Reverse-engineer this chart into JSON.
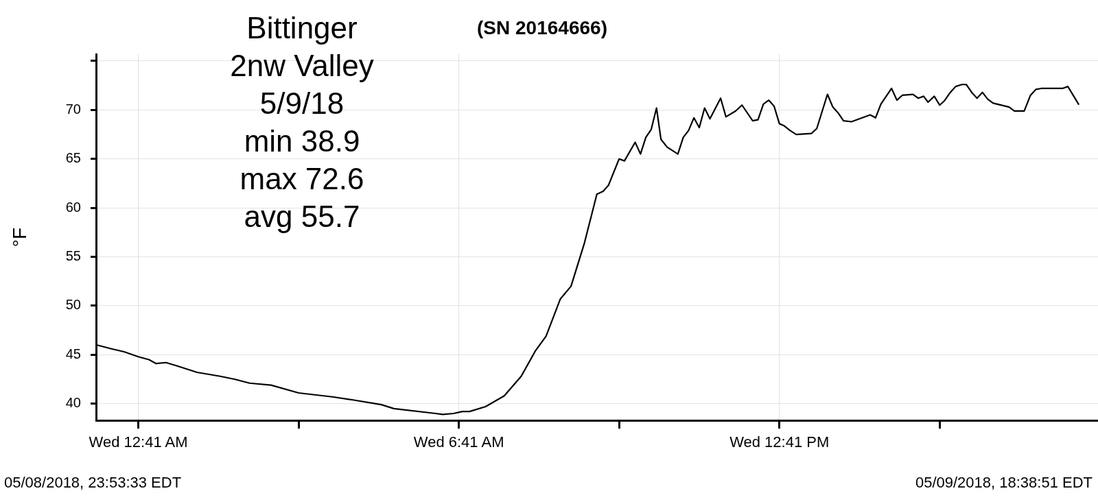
{
  "chart_data": {
    "type": "line",
    "title": "Bittinger\n2nw Valley\n5/9/18\nmin 38.9\nmax 72.6\navg 55.7",
    "subtitle": "(SN 20164666)",
    "ylabel": "°F",
    "annotations": [
      "05/08/2018, 23:53:33 EDT",
      "05/09/2018, 18:38:51 EDT"
    ],
    "x": [
      "2018-05-08T23:54",
      "2018-05-09T00:11",
      "2018-05-09T00:25",
      "2018-05-09T00:41",
      "2018-05-09T00:53",
      "2018-05-09T01:01",
      "2018-05-09T01:12",
      "2018-05-09T01:23",
      "2018-05-09T01:47",
      "2018-05-09T02:13",
      "2018-05-09T02:29",
      "2018-05-09T02:46",
      "2018-05-09T03:10",
      "2018-05-09T03:41",
      "2018-05-09T04:19",
      "2018-05-09T04:41",
      "2018-05-09T05:14",
      "2018-05-09T05:28",
      "2018-05-09T06:15",
      "2018-05-09T06:23",
      "2018-05-09T06:35",
      "2018-05-09T06:45",
      "2018-05-09T06:53",
      "2018-05-09T07:11",
      "2018-05-09T07:32",
      "2018-05-09T07:51",
      "2018-05-09T08:07",
      "2018-05-09T08:19",
      "2018-05-09T08:35",
      "2018-05-09T08:47",
      "2018-05-09T09:02",
      "2018-05-09T09:16",
      "2018-05-09T09:23",
      "2018-05-09T09:29",
      "2018-05-09T09:41",
      "2018-05-09T09:47",
      "2018-05-09T09:59",
      "2018-05-09T10:05",
      "2018-05-09T10:11",
      "2018-05-09T10:17",
      "2018-05-09T10:23",
      "2018-05-09T10:28",
      "2018-05-09T10:35",
      "2018-05-09T10:47",
      "2018-05-09T10:53",
      "2018-05-09T10:59",
      "2018-05-09T11:05",
      "2018-05-09T11:11",
      "2018-05-09T11:17",
      "2018-05-09T11:23",
      "2018-05-09T11:35",
      "2018-05-09T11:41",
      "2018-05-09T11:52",
      "2018-05-09T11:59",
      "2018-05-09T12:11",
      "2018-05-09T12:17",
      "2018-05-09T12:23",
      "2018-05-09T12:29",
      "2018-05-09T12:35",
      "2018-05-09T12:41",
      "2018-05-09T12:46",
      "2018-05-09T12:53",
      "2018-05-09T13:00",
      "2018-05-09T13:17",
      "2018-05-09T13:23",
      "2018-05-09T13:35",
      "2018-05-09T13:41",
      "2018-05-09T13:47",
      "2018-05-09T13:53",
      "2018-05-09T14:02",
      "2018-05-09T14:23",
      "2018-05-09T14:29",
      "2018-05-09T14:35",
      "2018-05-09T14:47",
      "2018-05-09T14:53",
      "2018-05-09T14:59",
      "2018-05-09T15:11",
      "2018-05-09T15:17",
      "2018-05-09T15:23",
      "2018-05-09T15:28",
      "2018-05-09T15:35",
      "2018-05-09T15:41",
      "2018-05-09T15:46",
      "2018-05-09T15:53",
      "2018-05-09T15:59",
      "2018-05-09T16:06",
      "2018-05-09T16:11",
      "2018-05-09T16:17",
      "2018-05-09T16:23",
      "2018-05-09T16:29",
      "2018-05-09T16:35",
      "2018-05-09T16:41",
      "2018-05-09T16:59",
      "2018-05-09T17:05",
      "2018-05-09T17:16",
      "2018-05-09T17:23",
      "2018-05-09T17:29",
      "2018-05-09T17:35",
      "2018-05-09T17:47",
      "2018-05-09T17:59",
      "2018-05-09T18:05",
      "2018-05-09T18:17"
    ],
    "series": [
      {
        "color": "#000000",
        "values": [
          46.0,
          45.6,
          45.3,
          44.8,
          44.5,
          44.1,
          44.2,
          43.9,
          43.2,
          42.8,
          42.5,
          42.1,
          41.9,
          41.1,
          40.7,
          40.4,
          39.9,
          39.5,
          39.0,
          38.9,
          39.0,
          39.2,
          39.2,
          39.7,
          40.8,
          42.8,
          45.4,
          46.9,
          50.7,
          52.0,
          56.4,
          61.4,
          61.7,
          62.3,
          65.0,
          64.8,
          66.7,
          65.5,
          67.2,
          68.0,
          70.2,
          67.0,
          66.2,
          65.5,
          67.2,
          67.9,
          69.2,
          68.2,
          70.2,
          69.1,
          71.2,
          69.3,
          69.9,
          70.5,
          68.9,
          69.0,
          70.6,
          71.0,
          70.4,
          68.6,
          68.4,
          67.9,
          67.5,
          67.6,
          68.1,
          71.6,
          70.3,
          69.7,
          68.9,
          68.8,
          69.5,
          69.2,
          70.6,
          72.2,
          71.0,
          71.5,
          71.6,
          71.2,
          71.4,
          70.8,
          71.4,
          70.5,
          70.9,
          71.8,
          72.4,
          72.6,
          72.6,
          71.8,
          71.2,
          71.8,
          71.1,
          70.7,
          70.3,
          69.9,
          69.9,
          71.5,
          72.1,
          72.2,
          72.2,
          72.2,
          72.4,
          70.6
        ]
      }
    ],
    "xlim": [
      "2018-05-08T23:53:33",
      "2018-05-09T18:38:51"
    ],
    "xticks": [
      {
        "value": "2018-05-09T00:41",
        "label": "Wed 12:41 AM"
      },
      {
        "value": "2018-05-09T03:41",
        "label": null
      },
      {
        "value": "2018-05-09T06:41",
        "label": "Wed 6:41 AM"
      },
      {
        "value": "2018-05-09T09:41",
        "label": null
      },
      {
        "value": "2018-05-09T12:41",
        "label": "Wed 12:41 PM"
      },
      {
        "value": "2018-05-09T15:41",
        "label": null
      }
    ],
    "ylim": [
      38.3,
      75.7
    ],
    "yticks": [
      40,
      45,
      50,
      55,
      60,
      65,
      70,
      {
        "value": 75,
        "label": null
      }
    ],
    "grid": true,
    "legend": false,
    "marker": "none",
    "line_style": "solid"
  }
}
